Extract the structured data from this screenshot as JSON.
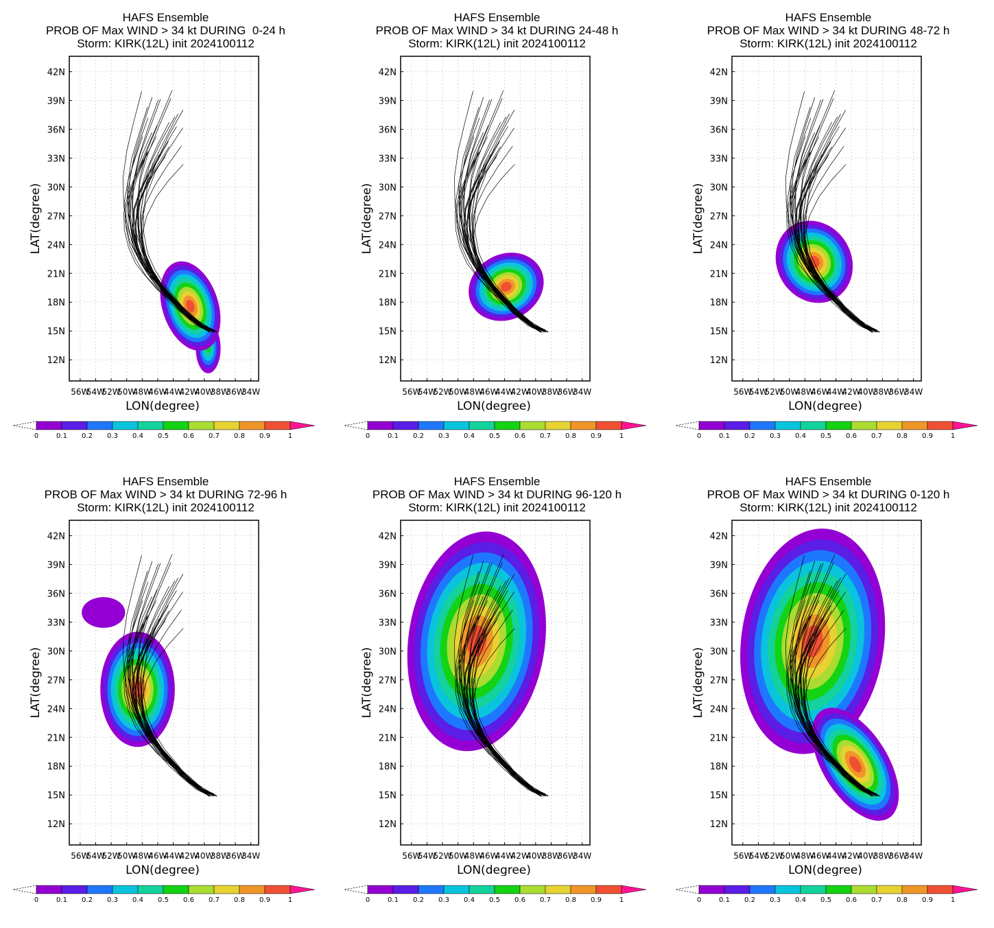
{
  "colors": {
    "scale": [
      "#9400d3",
      "#5a1ee6",
      "#1e78ff",
      "#0ac3dc",
      "#14d29b",
      "#14d214",
      "#aadc32",
      "#e6d232",
      "#f09628",
      "#f05032"
    ],
    "over": "#ff1493"
  },
  "common": {
    "line1": "HAFS Ensemble",
    "line3": "Storm: KIRK(12L) init 2024100112",
    "xlabel": "LON(degree)",
    "ylabel": "LAT(degree)",
    "lat_ticks": [
      "42N",
      "39N",
      "36N",
      "33N",
      "30N",
      "27N",
      "24N",
      "21N",
      "18N",
      "15N",
      "12N"
    ],
    "lon_ticks": [
      "56W",
      "54W",
      "52W",
      "50W",
      "48W",
      "46W",
      "44W",
      "42W",
      "40W",
      "38W",
      "36W",
      "34W"
    ],
    "colorbar_labels": [
      "0",
      "0.1",
      "0.2",
      "0.3",
      "0.4",
      "0.5",
      "0.6",
      "0.7",
      "0.8",
      "0.9",
      "1"
    ]
  },
  "panels": [
    {
      "line2": "PROB OF Max WIND > 34 kt DURING  0-24 h",
      "window": "0-24"
    },
    {
      "line2": "PROB OF Max WIND > 34 kt DURING 24-48 h",
      "window": "24-48"
    },
    {
      "line2": "PROB OF Max WIND > 34 kt DURING 48-72 h",
      "window": "48-72"
    },
    {
      "line2": "PROB OF Max WIND > 34 kt DURING 72-96 h",
      "window": "72-96"
    },
    {
      "line2": "PROB OF Max WIND > 34 kt DURING 96-120 h",
      "window": "96-120"
    },
    {
      "line2": "PROB OF Max WIND > 34 kt DURING 0-120 h",
      "window": "0-120"
    }
  ]
}
